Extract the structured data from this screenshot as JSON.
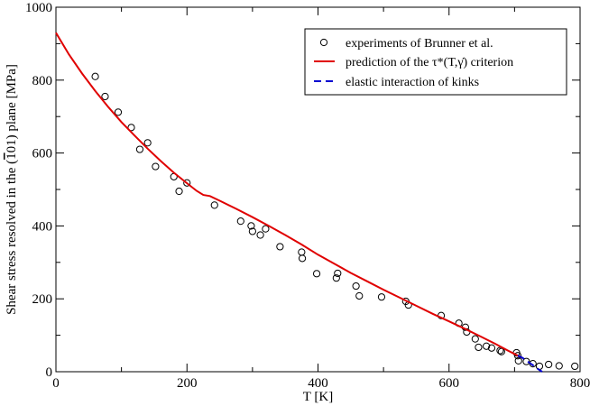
{
  "chart_data": {
    "type": "scatter",
    "title": "",
    "xlabel": "T [K]",
    "ylabel": "Shear stress resolved in the (ƀ1̅0̄1) plane [MPa]",
    "ylabel_parts": {
      "before": "Shear stress resolved in the (",
      "overbar": "1",
      "after": "01) plane [MPa]"
    },
    "xlim": [
      0,
      800
    ],
    "ylim": [
      0,
      1000
    ],
    "xticks": [
      "0",
      "200",
      "400",
      "600",
      "800"
    ],
    "yticks": [
      "0",
      "200",
      "400",
      "600",
      "800",
      "1000"
    ],
    "xtick_values": [
      0,
      200,
      400,
      600,
      800
    ],
    "ytick_values": [
      0,
      200,
      400,
      600,
      800,
      1000
    ],
    "grid": false,
    "legend_position": "top-right",
    "series": [
      {
        "name": "experiments of Brunner et al.",
        "kind": "scatter",
        "marker": "open-circle",
        "color": "#000000",
        "points": [
          [
            60,
            810
          ],
          [
            75,
            755
          ],
          [
            95,
            712
          ],
          [
            115,
            670
          ],
          [
            128,
            610
          ],
          [
            140,
            628
          ],
          [
            152,
            563
          ],
          [
            180,
            535
          ],
          [
            188,
            495
          ],
          [
            200,
            518
          ],
          [
            242,
            457
          ],
          [
            282,
            413
          ],
          [
            298,
            400
          ],
          [
            300,
            385
          ],
          [
            312,
            375
          ],
          [
            320,
            392
          ],
          [
            342,
            343
          ],
          [
            375,
            328
          ],
          [
            376,
            311
          ],
          [
            398,
            269
          ],
          [
            428,
            257
          ],
          [
            430,
            270
          ],
          [
            458,
            235
          ],
          [
            463,
            208
          ],
          [
            497,
            205
          ],
          [
            534,
            193
          ],
          [
            538,
            183
          ],
          [
            588,
            154
          ],
          [
            615,
            133
          ],
          [
            625,
            122
          ],
          [
            627,
            109
          ],
          [
            640,
            90
          ],
          [
            645,
            67
          ],
          [
            657,
            70
          ],
          [
            665,
            65
          ],
          [
            678,
            58
          ],
          [
            680,
            55
          ],
          [
            703,
            52
          ],
          [
            705,
            44
          ],
          [
            706,
            30
          ],
          [
            718,
            28
          ],
          [
            728,
            22
          ],
          [
            738,
            15
          ],
          [
            752,
            20
          ],
          [
            768,
            16
          ],
          [
            792,
            15
          ]
        ]
      },
      {
        "name": "prediction of the τ*(T,γ̇) criterion",
        "kind": "line",
        "color": "#e00000",
        "dash": "solid",
        "points": [
          [
            0,
            930
          ],
          [
            20,
            870
          ],
          [
            40,
            818
          ],
          [
            60,
            770
          ],
          [
            80,
            726
          ],
          [
            100,
            685
          ],
          [
            120,
            648
          ],
          [
            140,
            612
          ],
          [
            160,
            578
          ],
          [
            180,
            546
          ],
          [
            200,
            517
          ],
          [
            215,
            496
          ],
          [
            225,
            485
          ],
          [
            235,
            482
          ],
          [
            250,
            469
          ],
          [
            275,
            447
          ],
          [
            300,
            424
          ],
          [
            325,
            400
          ],
          [
            350,
            375
          ],
          [
            375,
            349
          ],
          [
            400,
            321
          ],
          [
            425,
            296
          ],
          [
            450,
            271
          ],
          [
            475,
            248
          ],
          [
            500,
            225
          ],
          [
            525,
            203
          ],
          [
            550,
            181
          ],
          [
            575,
            159
          ],
          [
            600,
            138
          ],
          [
            625,
            117
          ],
          [
            650,
            95
          ],
          [
            670,
            77
          ],
          [
            690,
            58
          ],
          [
            705,
            44
          ],
          [
            712,
            38
          ]
        ]
      },
      {
        "name": "elastic interaction of kinks",
        "kind": "line",
        "color": "#0000d0",
        "dash": "dashed",
        "points": [
          [
            705,
            44
          ],
          [
            712,
            38
          ],
          [
            720,
            28
          ],
          [
            730,
            15
          ],
          [
            737,
            6
          ],
          [
            742,
            0
          ]
        ]
      }
    ]
  }
}
